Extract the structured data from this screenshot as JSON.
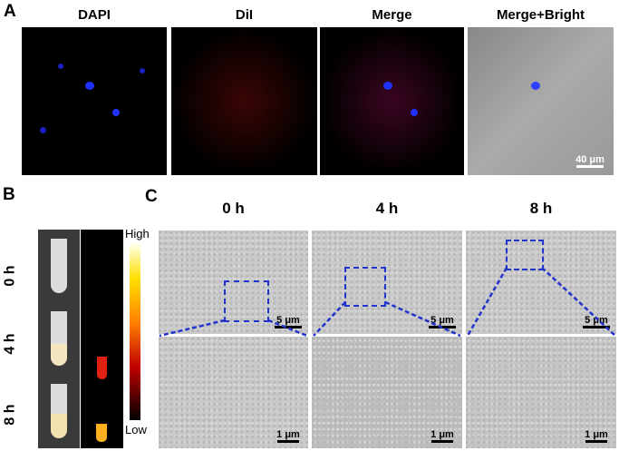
{
  "panel_a": {
    "label": "A",
    "titles": [
      "DAPI",
      "DiI",
      "Merge",
      "Merge+Bright"
    ],
    "scale_bar": "40 μm"
  },
  "panel_b": {
    "label": "B",
    "times": [
      "0 h",
      "4 h",
      "8 h"
    ],
    "colorbar": {
      "high": "High",
      "low": "Low"
    }
  },
  "panel_c": {
    "label": "C",
    "times": [
      "0 h",
      "4 h",
      "8 h"
    ],
    "scale_top": "5 μm",
    "scale_bottom": "1 μm",
    "highlight_color": "#2233cc"
  }
}
